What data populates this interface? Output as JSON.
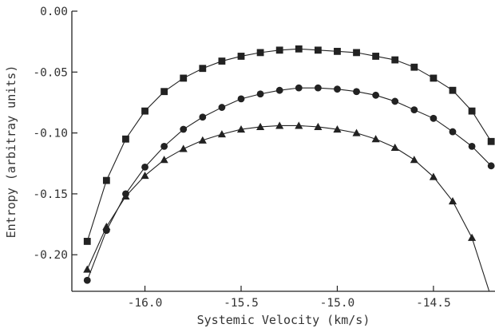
{
  "chart_data": {
    "type": "line",
    "title": "",
    "xlabel": "Systemic Velocity (km/s)",
    "ylabel": "Entropy (arbitray units)",
    "xlim": [
      -16.38,
      -14.18
    ],
    "ylim": [
      -0.23,
      0.0
    ],
    "x_ticks": [
      -16.0,
      -15.5,
      -15.0,
      -14.5
    ],
    "x_tick_labels": [
      "-16.0",
      "-15.5",
      "-15.0",
      "-14.5"
    ],
    "y_ticks": [
      0.0,
      -0.05,
      -0.1,
      -0.15,
      -0.2
    ],
    "y_tick_labels": [
      "0.00",
      "-0.05",
      "-0.10",
      "-0.15",
      "-0.20"
    ],
    "grid": false,
    "legend": "none",
    "color": "#222222",
    "series": [
      {
        "marker": "square",
        "x": [
          -16.3,
          -16.2,
          -16.1,
          -16.0,
          -15.9,
          -15.8,
          -15.7,
          -15.6,
          -15.5,
          -15.4,
          -15.3,
          -15.2,
          -15.1,
          -15.0,
          -14.9,
          -14.8,
          -14.7,
          -14.6,
          -14.5,
          -14.4,
          -14.3,
          -14.2
        ],
        "y": [
          -0.189,
          -0.139,
          -0.105,
          -0.082,
          -0.066,
          -0.055,
          -0.047,
          -0.041,
          -0.037,
          -0.034,
          -0.032,
          -0.031,
          -0.032,
          -0.033,
          -0.034,
          -0.037,
          -0.04,
          -0.046,
          -0.055,
          -0.065,
          -0.082,
          -0.107
        ]
      },
      {
        "marker": "circle",
        "x": [
          -16.3,
          -16.2,
          -16.1,
          -16.0,
          -15.9,
          -15.8,
          -15.7,
          -15.6,
          -15.5,
          -15.4,
          -15.3,
          -15.2,
          -15.1,
          -15.0,
          -14.9,
          -14.8,
          -14.7,
          -14.6,
          -14.5,
          -14.4,
          -14.3,
          -14.2
        ],
        "y": [
          -0.221,
          -0.18,
          -0.15,
          -0.128,
          -0.111,
          -0.097,
          -0.087,
          -0.079,
          -0.072,
          -0.068,
          -0.065,
          -0.063,
          -0.063,
          -0.064,
          -0.066,
          -0.069,
          -0.074,
          -0.081,
          -0.088,
          -0.099,
          -0.111,
          -0.127
        ]
      },
      {
        "marker": "triangle",
        "x": [
          -16.3,
          -16.2,
          -16.1,
          -16.0,
          -15.9,
          -15.8,
          -15.7,
          -15.6,
          -15.5,
          -15.4,
          -15.3,
          -15.2,
          -15.1,
          -15.0,
          -14.9,
          -14.8,
          -14.7,
          -14.6,
          -14.5,
          -14.4,
          -14.3,
          -14.2
        ],
        "y": [
          -0.212,
          -0.177,
          -0.152,
          -0.135,
          -0.122,
          -0.113,
          -0.106,
          -0.101,
          -0.097,
          -0.095,
          -0.094,
          -0.094,
          -0.095,
          -0.097,
          -0.1,
          -0.105,
          -0.112,
          -0.122,
          -0.136,
          -0.156,
          -0.186,
          -0.235
        ]
      }
    ]
  }
}
